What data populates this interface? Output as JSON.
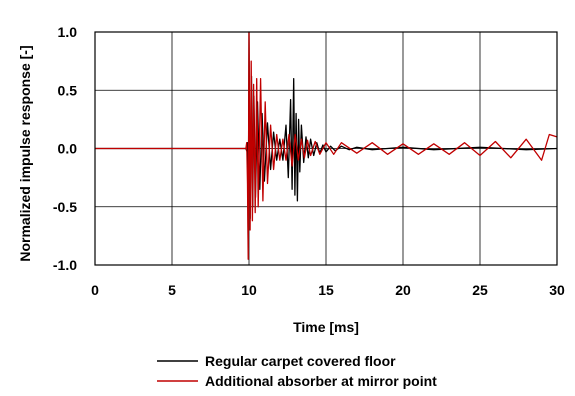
{
  "chart_data": {
    "type": "line",
    "title": "",
    "xlabel": "Time [ms]",
    "ylabel": "Normalized impulse response [-]",
    "xlim": [
      0,
      30
    ],
    "ylim": [
      -1.0,
      1.0
    ],
    "xticks": [
      0,
      5,
      10,
      15,
      20,
      25,
      30
    ],
    "xtick_labels": [
      "0",
      "5",
      "10",
      "15",
      "20",
      "25",
      "30"
    ],
    "yticks": [
      1.0,
      0.5,
      0.0,
      -0.5,
      -1.0
    ],
    "ytick_labels": [
      "1.0",
      "0.5",
      "0.0",
      "-0.5",
      "-1.0"
    ],
    "grid": true,
    "legend_position": "below",
    "series": [
      {
        "name": "Regular carpet covered floor",
        "color": "#000000",
        "points": [
          [
            0,
            0
          ],
          [
            9.8,
            0
          ],
          [
            9.85,
            -0.02
          ],
          [
            9.9,
            0.05
          ],
          [
            9.95,
            -0.85
          ],
          [
            10.0,
            1.0
          ],
          [
            10.08,
            -0.6
          ],
          [
            10.16,
            0.62
          ],
          [
            10.24,
            -0.5
          ],
          [
            10.32,
            0.45
          ],
          [
            10.42,
            -0.42
          ],
          [
            10.55,
            0.4
          ],
          [
            10.7,
            -0.35
          ],
          [
            10.85,
            0.3
          ],
          [
            11.0,
            -0.28
          ],
          [
            11.2,
            0.22
          ],
          [
            11.4,
            -0.18
          ],
          [
            11.6,
            0.14
          ],
          [
            11.8,
            -0.1
          ],
          [
            12.0,
            0.08
          ],
          [
            12.2,
            -0.1
          ],
          [
            12.4,
            0.2
          ],
          [
            12.55,
            -0.25
          ],
          [
            12.7,
            0.42
          ],
          [
            12.8,
            -0.35
          ],
          [
            12.9,
            0.6
          ],
          [
            12.98,
            -0.4
          ],
          [
            13.06,
            0.3
          ],
          [
            13.14,
            -0.45
          ],
          [
            13.22,
            0.25
          ],
          [
            13.3,
            -0.2
          ],
          [
            13.4,
            0.2
          ],
          [
            13.55,
            -0.12
          ],
          [
            13.7,
            0.1
          ],
          [
            13.85,
            -0.08
          ],
          [
            14.0,
            0.08
          ],
          [
            14.2,
            -0.06
          ],
          [
            14.4,
            0.05
          ],
          [
            14.6,
            -0.04
          ],
          [
            14.8,
            0.03
          ],
          [
            15.0,
            -0.03
          ],
          [
            15.3,
            0.02
          ],
          [
            15.6,
            -0.02
          ],
          [
            16.0,
            0.02
          ],
          [
            16.5,
            -0.01
          ],
          [
            17.0,
            0.01
          ],
          [
            18.0,
            -0.01
          ],
          [
            20.0,
            0.01
          ],
          [
            22.0,
            -0.01
          ],
          [
            25.0,
            0.01
          ],
          [
            28.0,
            -0.01
          ],
          [
            30.0,
            0
          ]
        ]
      },
      {
        "name": "Additional absorber at mirror point",
        "color": "#c00000",
        "points": [
          [
            0,
            0
          ],
          [
            9.8,
            0
          ],
          [
            9.85,
            0.05
          ],
          [
            9.9,
            -0.3
          ],
          [
            9.95,
            -0.95
          ],
          [
            10.0,
            1.0
          ],
          [
            10.07,
            -0.7
          ],
          [
            10.14,
            0.75
          ],
          [
            10.22,
            -0.62
          ],
          [
            10.3,
            0.55
          ],
          [
            10.4,
            -0.55
          ],
          [
            10.5,
            0.6
          ],
          [
            10.6,
            -0.5
          ],
          [
            10.75,
            0.6
          ],
          [
            10.9,
            -0.45
          ],
          [
            11.05,
            0.4
          ],
          [
            11.2,
            -0.3
          ],
          [
            11.4,
            0.2
          ],
          [
            11.6,
            -0.18
          ],
          [
            11.8,
            0.12
          ],
          [
            12.0,
            -0.1
          ],
          [
            12.2,
            0.08
          ],
          [
            12.4,
            -0.1
          ],
          [
            12.6,
            0.12
          ],
          [
            12.8,
            -0.15
          ],
          [
            13.0,
            0.12
          ],
          [
            13.2,
            -0.1
          ],
          [
            13.4,
            0.08
          ],
          [
            13.6,
            -0.08
          ],
          [
            13.8,
            0.07
          ],
          [
            14.0,
            -0.06
          ],
          [
            14.3,
            0.06
          ],
          [
            14.6,
            -0.05
          ],
          [
            15.0,
            0.05
          ],
          [
            15.5,
            -0.05
          ],
          [
            16.0,
            0.05
          ],
          [
            17.0,
            -0.04
          ],
          [
            18.0,
            0.05
          ],
          [
            19.0,
            -0.05
          ],
          [
            20.0,
            0.04
          ],
          [
            21.0,
            -0.05
          ],
          [
            22.0,
            0.04
          ],
          [
            23.0,
            -0.05
          ],
          [
            24.0,
            0.05
          ],
          [
            25.0,
            -0.06
          ],
          [
            26.0,
            0.06
          ],
          [
            27.0,
            -0.08
          ],
          [
            28.0,
            0.08
          ],
          [
            29.0,
            -0.1
          ],
          [
            29.5,
            0.12
          ],
          [
            30.0,
            0.1
          ]
        ]
      }
    ]
  }
}
